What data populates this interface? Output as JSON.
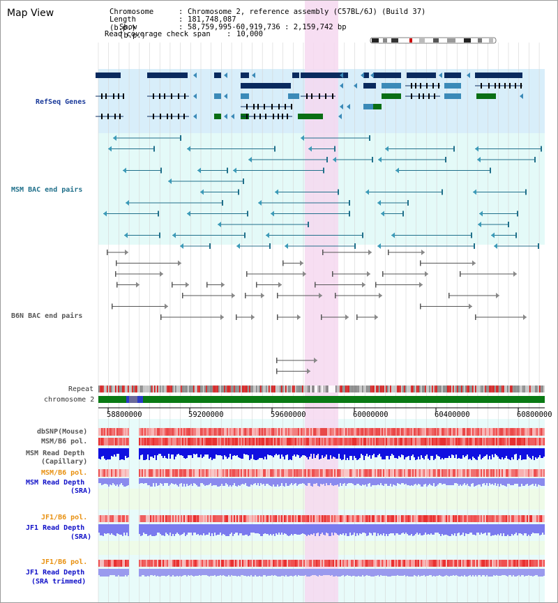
{
  "window": {
    "title": "Map View"
  },
  "info": {
    "chromosome_label": "Chromosome",
    "chromosome_value": "Chromosome 2, reference assembly (C57BL/6J) (Build 37)",
    "length_label": "Length (b.p.)",
    "length_value": "181,748,087",
    "show_label": "Show (b.p.)",
    "show_value": "58,759,995-60,919,736 : 2,159,742 bp",
    "span_label": "Read coverage check span",
    "span_value": "10,000"
  },
  "tracks": {
    "refseq": "RefSeq Genes",
    "msm_bac": "MSM BAC end pairs",
    "b6n_bac": "B6N BAC end pairs",
    "repeat": "Repeat",
    "chromosome": "chromosome 2",
    "dbsnp": "dbSNP(Mouse)",
    "msm_b6_pol": "MSM/B6 pol.",
    "msm_depth_cap_1": "MSM Read Depth",
    "msm_depth_cap_2": "(Capillary)",
    "msm_b6_pol2": "MSM/B6 pol.",
    "msm_depth_sra_1": "MSM Read Depth",
    "msm_depth_sra_2": "(SRA)",
    "jf1_pol": "JF1/B6 pol.",
    "jf1_depth_sra_1": "JF1 Read Depth",
    "jf1_depth_sra_2": "(SRA)",
    "jf1_pol2": "JF1/B6 pol.",
    "jf1_depth_trim_1": "JF1 Read Depth",
    "jf1_depth_trim_2": "(SRA trimmed)"
  },
  "axis": {
    "ticks": [
      "58800000",
      "59200000",
      "59600000",
      "60000000",
      "60400000",
      "60800000"
    ]
  },
  "colors": {
    "refseq_bg": "#d8eefa",
    "msm_bg": "#e4faf8",
    "gene_dark": "#0a2a5e",
    "gene_mid": "#3b8ab8",
    "gene_green": "#0a6e14",
    "highlight": "#f6d8f0",
    "chromosome_bar": "#0a7a14",
    "repeat_red": "#cc0000"
  }
}
